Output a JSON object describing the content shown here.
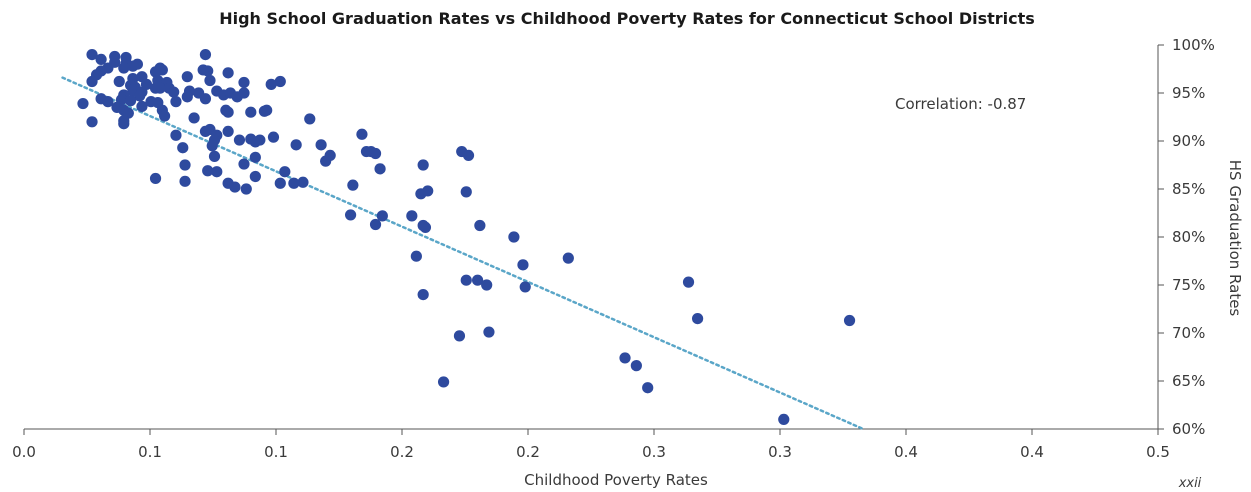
{
  "chart_data": {
    "type": "scatter",
    "title": "High School Graduation Rates vs Childhood Poverty Rates for Connecticut School Districts",
    "xlabel": "Childhood Poverty Rates",
    "ylabel": "HS Graduation Rates",
    "xlim": [
      0,
      0.5
    ],
    "ylim": [
      60,
      100
    ],
    "x_ticks": [
      "0.0",
      "0.1",
      "0.1",
      "0.2",
      "0.2",
      "0.3",
      "0.3",
      "0.4",
      "0.4",
      "0.5"
    ],
    "y_ticks": [
      "60%",
      "65%",
      "70%",
      "75%",
      "80%",
      "85%",
      "90%",
      "95%",
      "100%"
    ],
    "annotation": "Correlation: -0.87",
    "page_number": "xxii",
    "grid": false,
    "colors": {
      "points": "#2e4a9e",
      "trend": "#5aa6c8",
      "axis": "#555555"
    },
    "trendline": {
      "x": [
        0.017,
        0.37
      ],
      "y": [
        96.6,
        60
      ]
    },
    "points": [
      [
        0.03,
        99
      ],
      [
        0.04,
        98.8
      ],
      [
        0.045,
        98.7
      ],
      [
        0.034,
        98.5
      ],
      [
        0.04,
        98.2
      ],
      [
        0.045,
        98.1
      ],
      [
        0.05,
        98
      ],
      [
        0.048,
        97.8
      ],
      [
        0.044,
        97.6
      ],
      [
        0.037,
        97.6
      ],
      [
        0.06,
        97.6
      ],
      [
        0.061,
        97.4
      ],
      [
        0.058,
        97.2
      ],
      [
        0.034,
        97.3
      ],
      [
        0.032,
        96.9
      ],
      [
        0.052,
        96.7
      ],
      [
        0.048,
        96.5
      ],
      [
        0.059,
        96.3
      ],
      [
        0.042,
        96.2
      ],
      [
        0.063,
        96.1
      ],
      [
        0.054,
        95.9
      ],
      [
        0.047,
        95.8
      ],
      [
        0.049,
        95.6
      ],
      [
        0.058,
        95.5
      ],
      [
        0.06,
        95.5
      ],
      [
        0.064,
        95.5
      ],
      [
        0.03,
        96.2
      ],
      [
        0.048,
        95.2
      ],
      [
        0.052,
        95.1
      ],
      [
        0.044,
        94.8
      ],
      [
        0.051,
        94.7
      ],
      [
        0.034,
        94.4
      ],
      [
        0.043,
        94.3
      ],
      [
        0.047,
        94.2
      ],
      [
        0.056,
        94.1
      ],
      [
        0.059,
        94
      ],
      [
        0.067,
        94.1
      ],
      [
        0.037,
        94.1
      ],
      [
        0.052,
        93.6
      ],
      [
        0.041,
        93.5
      ],
      [
        0.044,
        93.2
      ],
      [
        0.061,
        93.2
      ],
      [
        0.046,
        92.9
      ],
      [
        0.062,
        92.6
      ],
      [
        0.044,
        92.1
      ],
      [
        0.03,
        92
      ],
      [
        0.044,
        91.8
      ],
      [
        0.026,
        93.9
      ],
      [
        0.073,
        95.2
      ],
      [
        0.066,
        95.1
      ],
      [
        0.081,
        97.3
      ],
      [
        0.072,
        96.7
      ],
      [
        0.079,
        97.4
      ],
      [
        0.09,
        97.1
      ],
      [
        0.097,
        96.1
      ],
      [
        0.109,
        95.9
      ],
      [
        0.113,
        96.2
      ],
      [
        0.082,
        96.3
      ],
      [
        0.085,
        95.2
      ],
      [
        0.088,
        94.8
      ],
      [
        0.091,
        95
      ],
      [
        0.094,
        94.6
      ],
      [
        0.077,
        95
      ],
      [
        0.072,
        94.6
      ],
      [
        0.08,
        94.4
      ],
      [
        0.097,
        95
      ],
      [
        0.1,
        93
      ],
      [
        0.106,
        93.1
      ],
      [
        0.107,
        93.2
      ],
      [
        0.089,
        93.2
      ],
      [
        0.09,
        93
      ],
      [
        0.075,
        92.4
      ],
      [
        0.082,
        91.2
      ],
      [
        0.08,
        91
      ],
      [
        0.085,
        90.6
      ],
      [
        0.09,
        91
      ],
      [
        0.084,
        90.1
      ],
      [
        0.095,
        90.1
      ],
      [
        0.102,
        89.9
      ],
      [
        0.104,
        90.1
      ],
      [
        0.1,
        90.2
      ],
      [
        0.11,
        90.4
      ],
      [
        0.067,
        90.6
      ],
      [
        0.07,
        89.3
      ],
      [
        0.083,
        89.5
      ],
      [
        0.126,
        92.3
      ],
      [
        0.12,
        89.6
      ],
      [
        0.131,
        89.6
      ],
      [
        0.135,
        88.5
      ],
      [
        0.149,
        90.7
      ],
      [
        0.153,
        88.9
      ],
      [
        0.102,
        88.3
      ],
      [
        0.084,
        88.4
      ],
      [
        0.071,
        87.5
      ],
      [
        0.097,
        87.6
      ],
      [
        0.081,
        86.9
      ],
      [
        0.085,
        86.8
      ],
      [
        0.102,
        86.3
      ],
      [
        0.115,
        86.8
      ],
      [
        0.113,
        85.6
      ],
      [
        0.123,
        85.7
      ],
      [
        0.119,
        85.6
      ],
      [
        0.09,
        85.6
      ],
      [
        0.071,
        85.8
      ],
      [
        0.093,
        85.2
      ],
      [
        0.098,
        85
      ],
      [
        0.058,
        86.1
      ],
      [
        0.145,
        85.4
      ],
      [
        0.157,
        87.1
      ],
      [
        0.133,
        87.9
      ],
      [
        0.155,
        88.7
      ],
      [
        0.151,
        88.9
      ],
      [
        0.176,
        87.5
      ],
      [
        0.175,
        84.5
      ],
      [
        0.178,
        84.8
      ],
      [
        0.195,
        84.7
      ],
      [
        0.193,
        88.9
      ],
      [
        0.196,
        88.5
      ],
      [
        0.144,
        82.3
      ],
      [
        0.155,
        81.3
      ],
      [
        0.158,
        82.2
      ],
      [
        0.171,
        82.2
      ],
      [
        0.176,
        81.2
      ],
      [
        0.177,
        81
      ],
      [
        0.173,
        78
      ],
      [
        0.2,
        75.5
      ],
      [
        0.204,
        75
      ],
      [
        0.216,
        80
      ],
      [
        0.22,
        77.1
      ],
      [
        0.221,
        74.8
      ],
      [
        0.176,
        74
      ],
      [
        0.185,
        64.9
      ],
      [
        0.192,
        69.7
      ],
      [
        0.195,
        75.5
      ],
      [
        0.201,
        81.2
      ],
      [
        0.205,
        70.1
      ],
      [
        0.24,
        77.8
      ],
      [
        0.265,
        67.4
      ],
      [
        0.275,
        64.3
      ],
      [
        0.27,
        66.6
      ],
      [
        0.293,
        75.3
      ],
      [
        0.297,
        71.5
      ],
      [
        0.335,
        61
      ],
      [
        0.364,
        71.3
      ],
      [
        0.08,
        99
      ]
    ]
  }
}
